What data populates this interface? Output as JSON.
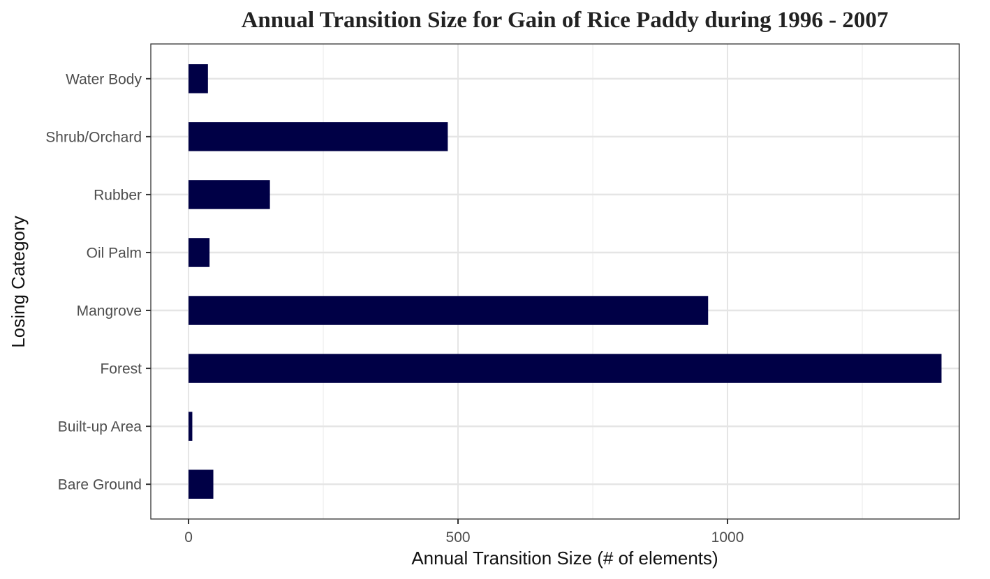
{
  "chart_data": {
    "type": "bar",
    "orientation": "horizontal",
    "title": "Annual Transition Size for Gain of  Rice Paddy during 1996 - 2007",
    "xlabel": "Annual Transition Size (# of elements)",
    "ylabel": "Losing Category",
    "categories": [
      "Bare Ground",
      "Built-up Area",
      "Forest",
      "Mangrove",
      "Oil Palm",
      "Rubber",
      "Shrub/Orchard",
      "Water Body"
    ],
    "values": [
      46,
      7,
      1397,
      964,
      39,
      151,
      481,
      36
    ],
    "xlim": [
      -70,
      1430
    ],
    "x_ticks": [
      0,
      500,
      1000
    ],
    "x_tick_labels": [
      "0",
      "500",
      "1000"
    ],
    "grid": true,
    "legend": "none",
    "colors": {
      "bar": "#000046",
      "panel_border": "#333333",
      "grid_major": "#e5e5e5",
      "grid_minor": "#f0f0f0",
      "tick_label": "#4d4d4d",
      "title": "#222222"
    }
  }
}
